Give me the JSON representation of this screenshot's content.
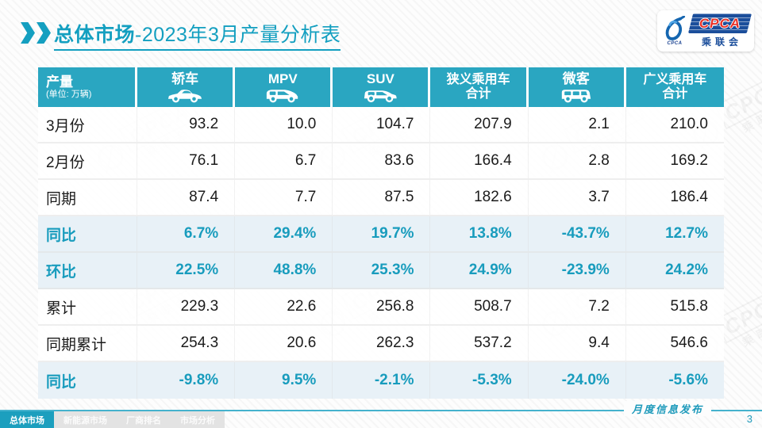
{
  "page": {
    "title_bold": "总体市场",
    "title_rest": "-2023年3月产量分析表",
    "footer_note": "月度信息发布",
    "page_number": "3"
  },
  "logo": {
    "brand": "CPCA",
    "brand_cn": "乘联会",
    "emblem_caption": "CPCA"
  },
  "watermark": {
    "brand": "CPCA",
    "brand_cn": "乘联会"
  },
  "table": {
    "corner": {
      "title": "产量",
      "subtitle": "(单位: 万辆)"
    },
    "columns": [
      {
        "label": "轿车",
        "icon": "sedan-icon"
      },
      {
        "label": "MPV",
        "icon": "mpv-icon"
      },
      {
        "label": "SUV",
        "icon": "suv-icon"
      },
      {
        "label": "狭义乘用车",
        "label2": "合计"
      },
      {
        "label": "微客",
        "icon": "microvan-icon"
      },
      {
        "label": "广义乘用车",
        "label2": "合计"
      }
    ],
    "rows": [
      {
        "label": "3月份",
        "highlight": false,
        "values": [
          "93.2",
          "10.0",
          "104.7",
          "207.9",
          "2.1",
          "210.0"
        ]
      },
      {
        "label": "2月份",
        "highlight": false,
        "values": [
          "76.1",
          "6.7",
          "83.6",
          "166.4",
          "2.8",
          "169.2"
        ]
      },
      {
        "label": "同期",
        "highlight": false,
        "values": [
          "87.4",
          "7.7",
          "87.5",
          "182.6",
          "3.7",
          "186.4"
        ]
      },
      {
        "label": "同比",
        "highlight": true,
        "values": [
          "6.7%",
          "29.4%",
          "19.7%",
          "13.8%",
          "-43.7%",
          "12.7%"
        ]
      },
      {
        "label": "环比",
        "highlight": true,
        "values": [
          "22.5%",
          "48.8%",
          "25.3%",
          "24.9%",
          "-23.9%",
          "24.2%"
        ]
      },
      {
        "label": "累计",
        "highlight": false,
        "values": [
          "229.3",
          "22.6",
          "256.8",
          "508.7",
          "7.2",
          "515.8"
        ]
      },
      {
        "label": "同期累计",
        "highlight": false,
        "values": [
          "254.3",
          "20.6",
          "262.3",
          "537.2",
          "9.4",
          "546.6"
        ]
      },
      {
        "label": "同比",
        "highlight": true,
        "values": [
          "-9.8%",
          "9.5%",
          "-2.1%",
          "-5.3%",
          "-24.0%",
          "-5.6%"
        ]
      }
    ]
  },
  "tabs": [
    {
      "label": "总体市场",
      "active": true
    },
    {
      "label": "新能源市场",
      "active": false
    },
    {
      "label": "厂商排名",
      "active": false
    },
    {
      "label": "市场分析",
      "active": false
    }
  ],
  "colors": {
    "teal_accent": "#139fc0",
    "header_bg": "#2aa6c1",
    "highlight_row_bg": "#e8f1f7",
    "highlight_text": "#189cbd",
    "logo_blue": "#1b4e9b",
    "logo_red": "#e8332a"
  },
  "chart_data": {
    "type": "table",
    "title": "总体市场-2023年3月产量分析表",
    "unit": "万辆",
    "columns": [
      "轿车",
      "MPV",
      "SUV",
      "狭义乘用车合计",
      "微客",
      "广义乘用车合计"
    ],
    "rows": [
      {
        "label": "3月份",
        "values": [
          93.2,
          10.0,
          104.7,
          207.9,
          2.1,
          210.0
        ]
      },
      {
        "label": "2月份",
        "values": [
          76.1,
          6.7,
          83.6,
          166.4,
          2.8,
          169.2
        ]
      },
      {
        "label": "同期",
        "values": [
          87.4,
          7.7,
          87.5,
          182.6,
          3.7,
          186.4
        ]
      },
      {
        "label": "同比",
        "values": [
          "6.7%",
          "29.4%",
          "19.7%",
          "13.8%",
          "-43.7%",
          "12.7%"
        ]
      },
      {
        "label": "环比",
        "values": [
          "22.5%",
          "48.8%",
          "25.3%",
          "24.9%",
          "-23.9%",
          "24.2%"
        ]
      },
      {
        "label": "累计",
        "values": [
          229.3,
          22.6,
          256.8,
          508.7,
          7.2,
          515.8
        ]
      },
      {
        "label": "同期累计",
        "values": [
          254.3,
          20.6,
          262.3,
          537.2,
          9.4,
          546.6
        ]
      },
      {
        "label": "同比",
        "values": [
          "-9.8%",
          "9.5%",
          "-2.1%",
          "-5.3%",
          "-24.0%",
          "-5.6%"
        ]
      }
    ]
  }
}
